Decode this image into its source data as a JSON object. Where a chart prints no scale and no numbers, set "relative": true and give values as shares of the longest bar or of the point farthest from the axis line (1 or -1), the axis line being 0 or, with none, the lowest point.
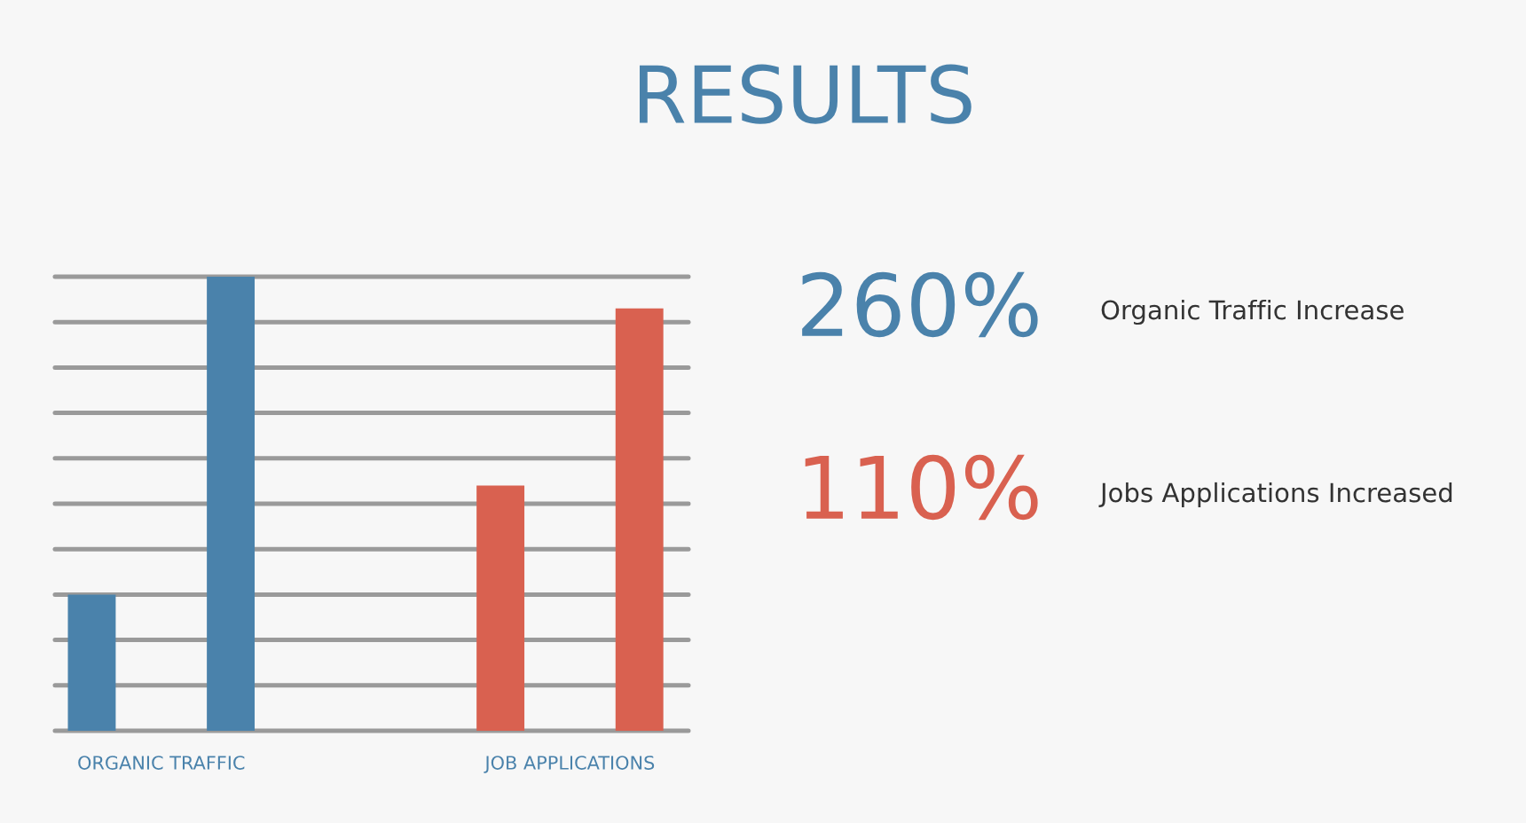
{
  "chart_data": {
    "type": "bar",
    "title": "RESULTS",
    "categories": [
      "ORGANIC TRAFFIC",
      "JOB APPLICATIONS"
    ],
    "series": [
      {
        "colors": [
          "#4a82ab",
          "#d96150"
        ],
        "values": [
          0.3,
          0.54
        ]
      },
      {
        "colors": [
          "#4a82ab",
          "#d96150"
        ],
        "values": [
          1,
          0.93
        ]
      }
    ],
    "relative": true,
    "grid": "y",
    "annotations": [
      "260%",
      "Organic Traffic Increase",
      "110%",
      "Jobs Applications Increased"
    ]
  }
}
